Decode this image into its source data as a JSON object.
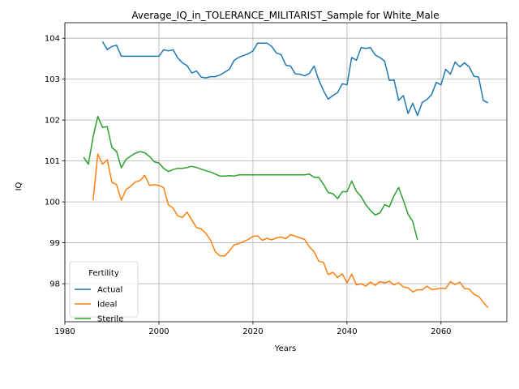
{
  "chart_data": {
    "type": "line",
    "title": "Average_IQ_in_TOLERANCE_MILITARIST_Sample for White_Male",
    "xlabel": "Years",
    "ylabel": "IQ",
    "xlim": [
      1980,
      2074
    ],
    "ylim": [
      97.07,
      104.38
    ],
    "xticks": [
      1980,
      2000,
      2020,
      2040,
      2060
    ],
    "yticks": [
      98,
      99,
      100,
      101,
      102,
      103,
      104
    ],
    "grid": true,
    "legend": {
      "title": "Fertility",
      "position": "lower-left"
    },
    "series": [
      {
        "name": "Actual",
        "color": "#1f77b4",
        "x": [
          1988,
          1989,
          1990,
          1991,
          1992,
          1993,
          1994,
          1995,
          1996,
          1997,
          1998,
          1999,
          2000,
          2001,
          2002,
          2003,
          2004,
          2005,
          2006,
          2007,
          2008,
          2009,
          2010,
          2011,
          2012,
          2013,
          2014,
          2015,
          2016,
          2017,
          2018,
          2019,
          2020,
          2021,
          2022,
          2023,
          2024,
          2025,
          2026,
          2027,
          2028,
          2029,
          2030,
          2031,
          2032,
          2033,
          2034,
          2035,
          2036,
          2037,
          2038,
          2039,
          2040,
          2041,
          2042,
          2043,
          2044,
          2045,
          2046,
          2047,
          2048,
          2049,
          2050,
          2051,
          2052,
          2053,
          2054,
          2055,
          2056,
          2057,
          2058,
          2059,
          2060,
          2061,
          2062,
          2063,
          2064,
          2065,
          2066,
          2067,
          2068,
          2069,
          2070
        ],
        "y": [
          103.92,
          103.72,
          103.8,
          103.83,
          103.56,
          103.56,
          103.56,
          103.56,
          103.56,
          103.56,
          103.56,
          103.56,
          103.56,
          103.72,
          103.69,
          103.72,
          103.52,
          103.4,
          103.33,
          103.15,
          103.2,
          103.05,
          103.03,
          103.06,
          103.06,
          103.1,
          103.17,
          103.24,
          103.46,
          103.53,
          103.58,
          103.62,
          103.69,
          103.88,
          103.88,
          103.88,
          103.8,
          103.64,
          103.6,
          103.34,
          103.32,
          103.13,
          103.12,
          103.08,
          103.14,
          103.32,
          102.98,
          102.72,
          102.51,
          102.6,
          102.67,
          102.89,
          102.86,
          103.53,
          103.46,
          103.77,
          103.75,
          103.77,
          103.59,
          103.53,
          103.44,
          102.97,
          102.98,
          102.48,
          102.6,
          102.16,
          102.41,
          102.11,
          102.43,
          102.5,
          102.62,
          102.92,
          102.86,
          103.24,
          103.12,
          103.42,
          103.3,
          103.4,
          103.3,
          103.07,
          103.05,
          102.48,
          102.42
        ]
      },
      {
        "name": "Ideal",
        "color": "#ff7f0e",
        "x": [
          1986,
          1987,
          1988,
          1989,
          1990,
          1991,
          1992,
          1993,
          1994,
          1995,
          1996,
          1997,
          1998,
          1999,
          2000,
          2001,
          2002,
          2003,
          2004,
          2005,
          2006,
          2007,
          2008,
          2009,
          2010,
          2011,
          2012,
          2013,
          2014,
          2015,
          2016,
          2017,
          2018,
          2019,
          2020,
          2021,
          2022,
          2023,
          2024,
          2025,
          2026,
          2027,
          2028,
          2029,
          2030,
          2031,
          2032,
          2033,
          2034,
          2035,
          2036,
          2037,
          2038,
          2039,
          2040,
          2041,
          2042,
          2043,
          2044,
          2045,
          2046,
          2047,
          2048,
          2049,
          2050,
          2051,
          2052,
          2053,
          2054,
          2055,
          2056,
          2057,
          2058,
          2059,
          2060,
          2061,
          2062,
          2063,
          2064,
          2065,
          2066,
          2067,
          2068,
          2069,
          2070
        ],
        "y": [
          100.04,
          101.17,
          100.92,
          101.03,
          100.48,
          100.42,
          100.04,
          100.3,
          100.38,
          100.49,
          100.52,
          100.65,
          100.4,
          100.42,
          100.4,
          100.35,
          99.93,
          99.85,
          99.66,
          99.62,
          99.75,
          99.56,
          99.37,
          99.34,
          99.23,
          99.06,
          98.78,
          98.68,
          98.68,
          98.8,
          98.95,
          98.98,
          99.03,
          99.08,
          99.16,
          99.17,
          99.06,
          99.11,
          99.07,
          99.12,
          99.14,
          99.1,
          99.2,
          99.16,
          99.12,
          99.08,
          98.9,
          98.78,
          98.55,
          98.52,
          98.22,
          98.28,
          98.15,
          98.24,
          98.02,
          98.23,
          97.97,
          98.0,
          97.94,
          98.04,
          97.96,
          98.05,
          98.02,
          98.06,
          97.97,
          98.02,
          97.92,
          97.9,
          97.8,
          97.85,
          97.85,
          97.94,
          97.86,
          97.87,
          97.89,
          97.88,
          98.05,
          97.98,
          98.04,
          97.88,
          97.87,
          97.74,
          97.69,
          97.55,
          97.41
        ]
      },
      {
        "name": "Sterile",
        "color": "#2ca02c",
        "x": [
          1984,
          1985,
          1986,
          1987,
          1988,
          1989,
          1990,
          1991,
          1992,
          1993,
          1994,
          1995,
          1996,
          1997,
          1998,
          1999,
          2000,
          2001,
          2002,
          2003,
          2004,
          2005,
          2006,
          2007,
          2008,
          2009,
          2010,
          2011,
          2012,
          2013,
          2014,
          2015,
          2016,
          2017,
          2018,
          2019,
          2020,
          2021,
          2022,
          2023,
          2024,
          2025,
          2026,
          2027,
          2028,
          2029,
          2030,
          2031,
          2032,
          2033,
          2034,
          2035,
          2036,
          2037,
          2038,
          2039,
          2040,
          2041,
          2042,
          2043,
          2044,
          2045,
          2046,
          2047,
          2048,
          2049,
          2050,
          2051,
          2052,
          2053,
          2054,
          2055
        ],
        "y": [
          101.09,
          100.92,
          101.59,
          102.09,
          101.82,
          101.84,
          101.33,
          101.23,
          100.83,
          101.04,
          101.12,
          101.19,
          101.23,
          101.2,
          101.11,
          100.98,
          100.95,
          100.82,
          100.74,
          100.79,
          100.82,
          100.82,
          100.84,
          100.87,
          100.84,
          100.8,
          100.76,
          100.73,
          100.68,
          100.63,
          100.63,
          100.64,
          100.63,
          100.66,
          100.66,
          100.66,
          100.66,
          100.66,
          100.66,
          100.66,
          100.66,
          100.66,
          100.66,
          100.66,
          100.66,
          100.66,
          100.66,
          100.66,
          100.68,
          100.6,
          100.6,
          100.43,
          100.23,
          100.2,
          100.08,
          100.25,
          100.25,
          100.51,
          100.26,
          100.13,
          99.93,
          99.79,
          99.68,
          99.73,
          99.93,
          99.88,
          100.15,
          100.35,
          100.04,
          99.7,
          99.52,
          99.07
        ]
      }
    ]
  }
}
